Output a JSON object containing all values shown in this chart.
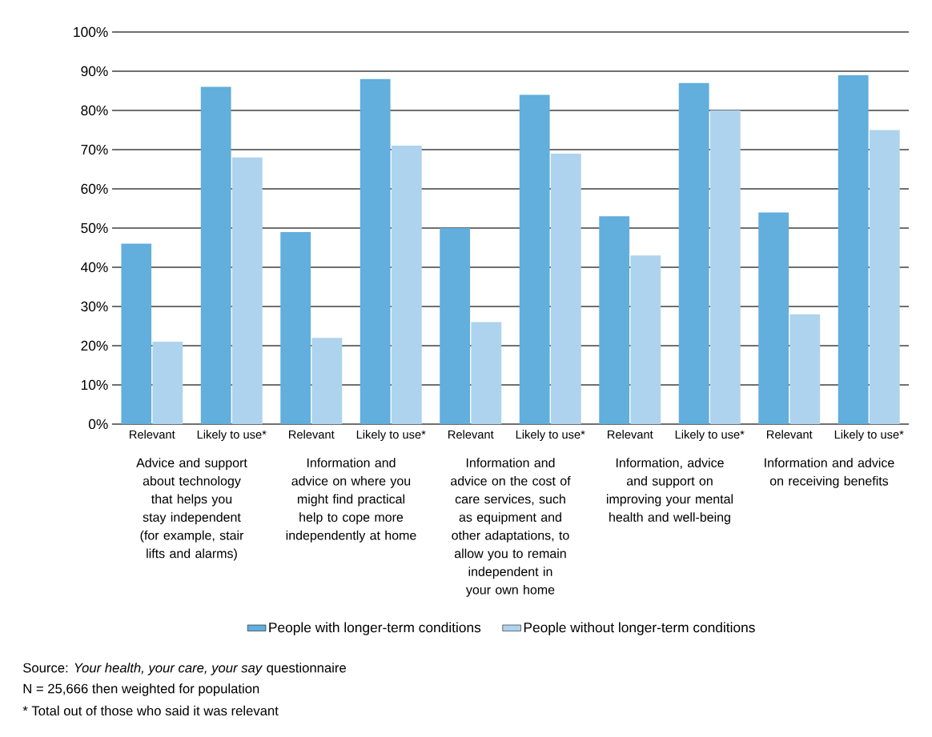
{
  "chart_data": {
    "type": "bar",
    "categories": [
      "Relevant",
      "Likely to use*",
      "Relevant",
      "Likely to use*",
      "Relevant",
      "Likely to use*",
      "Relevant",
      "Likely to use*",
      "Relevant",
      "Likely to use*"
    ],
    "series": [
      {
        "name": "People with longer-term conditions",
        "color": "#62aedd",
        "values": [
          46,
          86,
          49,
          88,
          50,
          84,
          53,
          87,
          54,
          89
        ]
      },
      {
        "name": "People without longer-term conditions",
        "color": "#aed3ee",
        "values": [
          21,
          68,
          22,
          71,
          26,
          69,
          43,
          80,
          28,
          75
        ]
      }
    ],
    "ylim": [
      0,
      100
    ],
    "yticks": [
      {
        "value": 0,
        "label": "0%"
      },
      {
        "value": 10,
        "label": "10%"
      },
      {
        "value": 20,
        "label": "20%"
      },
      {
        "value": 30,
        "label": "30%"
      },
      {
        "value": 40,
        "label": "40%"
      },
      {
        "value": 50,
        "label": "50%"
      },
      {
        "value": 60,
        "label": "60%"
      },
      {
        "value": 70,
        "label": "70%"
      },
      {
        "value": 80,
        "label": "80%"
      },
      {
        "value": 90,
        "label": "90%"
      },
      {
        "value": 100,
        "label": "100%"
      }
    ],
    "grid": "y",
    "legend": "bottom",
    "annotations": [
      "Advice and support about technology that helps you stay independent (for example, stair lifts and alarms)",
      "Information and advice on where you might find practical help to cope more independently at home",
      "Information and advice on the cost of care services, such as equipment and other adaptations, to allow you to remain independent in your own home",
      "Information, advice and support on improving your mental health and well-being",
      "Information and advice on receiving benefits",
      "Source: *Your health, your care, your say* questionnaire",
      "N = 25,666 then weighted for population",
      "*  Total out of those who said it was relevant"
    ]
  }
}
